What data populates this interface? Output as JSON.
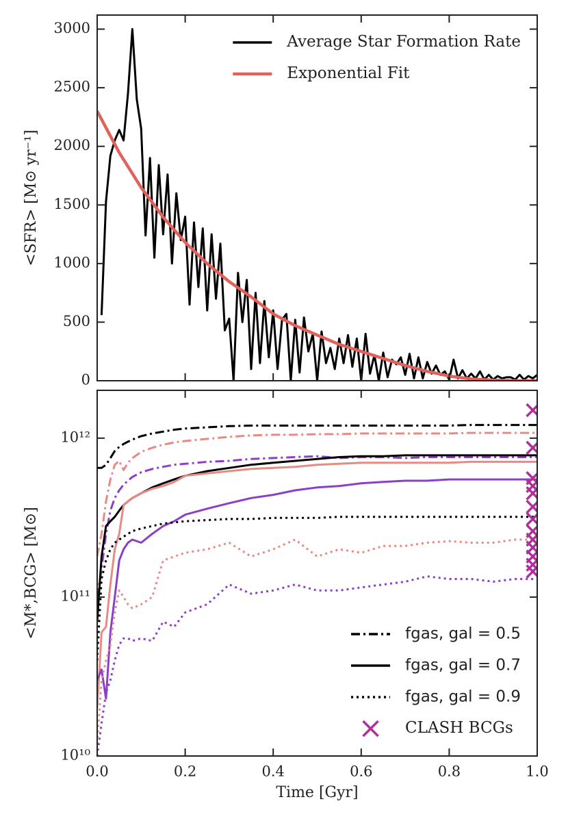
{
  "chart_data": [
    {
      "type": "line",
      "ylabel": "<SFR> [M⊙ yr⁻¹]",
      "xlim": [
        0,
        1
      ],
      "xticks": [
        0,
        0.2,
        0.4,
        0.6,
        0.8,
        1
      ],
      "ylim": [
        0,
        3120
      ],
      "yticks": [
        0,
        500,
        1000,
        1500,
        2000,
        2500,
        3000
      ],
      "legend": "upper right",
      "series": [
        {
          "name": "Average Star Formation Rate",
          "color": "#000000",
          "linestyle": "solid",
          "x": [
            0.01,
            0.02,
            0.03,
            0.04,
            0.05,
            0.06,
            0.07,
            0.08,
            0.09,
            0.1,
            0.11,
            0.12,
            0.13,
            0.14,
            0.15,
            0.16,
            0.17,
            0.18,
            0.19,
            0.2,
            0.21,
            0.22,
            0.23,
            0.24,
            0.25,
            0.26,
            0.27,
            0.28,
            0.29,
            0.3,
            0.31,
            0.32,
            0.33,
            0.34,
            0.35,
            0.36,
            0.37,
            0.38,
            0.39,
            0.4,
            0.41,
            0.42,
            0.43,
            0.44,
            0.45,
            0.46,
            0.47,
            0.48,
            0.49,
            0.5,
            0.51,
            0.52,
            0.53,
            0.54,
            0.55,
            0.56,
            0.57,
            0.58,
            0.59,
            0.6,
            0.61,
            0.62,
            0.63,
            0.64,
            0.65,
            0.66,
            0.67,
            0.68,
            0.69,
            0.7,
            0.71,
            0.72,
            0.73,
            0.74,
            0.75,
            0.76,
            0.77,
            0.78,
            0.79,
            0.8,
            0.81,
            0.82,
            0.83,
            0.84,
            0.85,
            0.86,
            0.87,
            0.88,
            0.89,
            0.9,
            0.91,
            0.92,
            0.93,
            0.94,
            0.95,
            0.96,
            0.97,
            0.98,
            0.99,
            1.0
          ],
          "values": [
            560,
            1530,
            1920,
            2050,
            2140,
            2050,
            2450,
            3000,
            2400,
            2150,
            1240,
            1900,
            1050,
            1840,
            1250,
            1760,
            1000,
            1600,
            1200,
            1400,
            650,
            1350,
            800,
            1300,
            600,
            1250,
            700,
            1170,
            430,
            530,
            0,
            920,
            500,
            860,
            100,
            750,
            150,
            680,
            200,
            600,
            100,
            520,
            570,
            0,
            520,
            70,
            540,
            250,
            400,
            0,
            420,
            150,
            280,
            100,
            360,
            150,
            390,
            120,
            360,
            0,
            400,
            60,
            220,
            0,
            240,
            30,
            180,
            140,
            200,
            50,
            230,
            20,
            200,
            20,
            160,
            60,
            130,
            50,
            80,
            10,
            180,
            20,
            90,
            20,
            60,
            20,
            80,
            10,
            50,
            10,
            40,
            20,
            30,
            30,
            10,
            50,
            10,
            40,
            20,
            50
          ]
        },
        {
          "name": "Exponential Fit",
          "color": "#e0625c",
          "linestyle": "solid",
          "width": 4.5,
          "x": [
            0,
            0.05,
            0.1,
            0.15,
            0.2,
            0.25,
            0.3,
            0.35,
            0.4,
            0.45,
            0.5,
            0.55,
            0.6,
            0.65,
            0.7,
            0.75,
            0.8,
            0.85,
            0.9,
            0.95,
            1.0
          ],
          "values": [
            2300,
            1947,
            1648,
            1395,
            1181,
            999,
            846,
            716,
            570,
            470,
            390,
            310,
            250,
            190,
            130,
            80,
            40,
            15,
            5,
            0,
            0
          ]
        }
      ]
    },
    {
      "type": "line",
      "xlabel": "Time [Gyr]",
      "ylabel": "<M*,BCG> [M⊙]",
      "xlim": [
        0,
        1
      ],
      "xticks": [
        {
          "value": 0,
          "label": "0.0"
        },
        0.2,
        0.4,
        0.6,
        0.8,
        {
          "value": 1,
          "label": "1.0"
        }
      ],
      "ylim": [
        10000000000.0,
        2000000000000.0
      ],
      "log_y": true,
      "yticks": [
        {
          "value": 10000000000.0,
          "label": "10¹⁰"
        },
        {
          "value": 100000000000.0,
          "label": "10¹¹"
        },
        {
          "value": 1000000000000.0,
          "label": "10¹²"
        }
      ],
      "legend": "lower right",
      "x": [
        0,
        0.01,
        0.02,
        0.03,
        0.04,
        0.05,
        0.06,
        0.07,
        0.08,
        0.1,
        0.125,
        0.15,
        0.175,
        0.2,
        0.25,
        0.3,
        0.35,
        0.4,
        0.45,
        0.5,
        0.55,
        0.6,
        0.65,
        0.7,
        0.75,
        0.8,
        0.85,
        0.9,
        0.95,
        1.0
      ],
      "series": [
        {
          "name": "fgas, gal = 0.5",
          "color": "#000000",
          "linestyle": "dashdot",
          "values": [
            650000000000.0,
            650000000000.0,
            680000000000.0,
            750000000000.0,
            830000000000.0,
            880000000000.0,
            920000000000.0,
            950000000000.0,
            980000000000.0,
            1030000000000.0,
            1070000000000.0,
            1100000000000.0,
            1130000000000.0,
            1150000000000.0,
            1170000000000.0,
            1190000000000.0,
            1200000000000.0,
            1200000000000.0,
            1200000000000.0,
            1200000000000.0,
            1200000000000.0,
            1200000000000.0,
            1200000000000.0,
            1200000000000.0,
            1200000000000.0,
            1200000000000.0,
            1210000000000.0,
            1210000000000.0,
            1210000000000.0,
            1210000000000.0
          ]
        },
        {
          "color": "#e88a84",
          "linestyle": "dashdot",
          "values": [
            180000000000.0,
            250000000000.0,
            400000000000.0,
            550000000000.0,
            680000000000.0,
            720000000000.0,
            630000000000.0,
            700000000000.0,
            750000000000.0,
            820000000000.0,
            870000000000.0,
            910000000000.0,
            940000000000.0,
            960000000000.0,
            990000000000.0,
            1020000000000.0,
            1040000000000.0,
            1050000000000.0,
            1050000000000.0,
            1060000000000.0,
            1060000000000.0,
            1070000000000.0,
            1070000000000.0,
            1070000000000.0,
            1070000000000.0,
            1070000000000.0,
            1080000000000.0,
            1080000000000.0,
            1080000000000.0,
            1080000000000.0
          ]
        },
        {
          "color": "#8b3fc9",
          "linestyle": "dashdot",
          "values": [
            100000000000.0,
            150000000000.0,
            250000000000.0,
            350000000000.0,
            420000000000.0,
            470000000000.0,
            510000000000.0,
            540000000000.0,
            570000000000.0,
            610000000000.0,
            640000000000.0,
            660000000000.0,
            680000000000.0,
            690000000000.0,
            710000000000.0,
            720000000000.0,
            740000000000.0,
            750000000000.0,
            760000000000.0,
            770000000000.0,
            750000000000.0,
            760000000000.0,
            760000000000.0,
            750000000000.0,
            760000000000.0,
            760000000000.0,
            760000000000.0,
            760000000000.0,
            760000000000.0,
            760000000000.0
          ]
        },
        {
          "name": "fgas, gal = 0.7",
          "color": "#000000",
          "linestyle": "solid",
          "values": [
            70000000000.0,
            180000000000.0,
            280000000000.0,
            300000000000.0,
            320000000000.0,
            350000000000.0,
            380000000000.0,
            400000000000.0,
            420000000000.0,
            450000000000.0,
            490000000000.0,
            520000000000.0,
            550000000000.0,
            580000000000.0,
            620000000000.0,
            650000000000.0,
            680000000000.0,
            700000000000.0,
            720000000000.0,
            740000000000.0,
            760000000000.0,
            770000000000.0,
            770000000000.0,
            780000000000.0,
            780000000000.0,
            780000000000.0,
            780000000000.0,
            780000000000.0,
            780000000000.0,
            780000000000.0
          ]
        },
        {
          "color": "#e88a84",
          "linestyle": "solid",
          "values": [
            20000000000.0,
            60000000000.0,
            65000000000.0,
            120000000000.0,
            200000000000.0,
            250000000000.0,
            380000000000.0,
            400000000000.0,
            420000000000.0,
            450000000000.0,
            480000000000.0,
            500000000000.0,
            530000000000.0,
            580000000000.0,
            600000000000.0,
            620000000000.0,
            640000000000.0,
            650000000000.0,
            660000000000.0,
            680000000000.0,
            690000000000.0,
            700000000000.0,
            700000000000.0,
            700000000000.0,
            700000000000.0,
            700000000000.0,
            710000000000.0,
            710000000000.0,
            710000000000.0,
            710000000000.0
          ]
        },
        {
          "color": "#8b3fc9",
          "linestyle": "solid",
          "values": [
            30000000000.0,
            35000000000.0,
            23000000000.0,
            60000000000.0,
            100000000000.0,
            170000000000.0,
            200000000000.0,
            220000000000.0,
            230000000000.0,
            220000000000.0,
            250000000000.0,
            280000000000.0,
            300000000000.0,
            330000000000.0,
            360000000000.0,
            390000000000.0,
            420000000000.0,
            440000000000.0,
            470000000000.0,
            490000000000.0,
            500000000000.0,
            520000000000.0,
            530000000000.0,
            540000000000.0,
            540000000000.0,
            550000000000.0,
            550000000000.0,
            550000000000.0,
            550000000000.0,
            550000000000.0
          ]
        },
        {
          "name": "fgas, gal = 0.9",
          "color": "#000000",
          "linestyle": "dotted",
          "values": [
            40000000000.0,
            130000000000.0,
            170000000000.0,
            200000000000.0,
            220000000000.0,
            230000000000.0,
            240000000000.0,
            250000000000.0,
            260000000000.0,
            270000000000.0,
            280000000000.0,
            290000000000.0,
            295000000000.0,
            300000000000.0,
            305000000000.0,
            310000000000.0,
            310000000000.0,
            315000000000.0,
            315000000000.0,
            315000000000.0,
            320000000000.0,
            320000000000.0,
            320000000000.0,
            320000000000.0,
            320000000000.0,
            320000000000.0,
            320000000000.0,
            320000000000.0,
            320000000000.0,
            320000000000.0
          ]
        },
        {
          "color": "#e88a84",
          "linestyle": "dotted",
          "values": [
            12000000000.0,
            30000000000.0,
            40000000000.0,
            50000000000.0,
            80000000000.0,
            110000000000.0,
            100000000000.0,
            90000000000.0,
            85000000000.0,
            90000000000.0,
            100000000000.0,
            170000000000.0,
            180000000000.0,
            190000000000.0,
            200000000000.0,
            220000000000.0,
            180000000000.0,
            200000000000.0,
            230000000000.0,
            180000000000.0,
            200000000000.0,
            190000000000.0,
            210000000000.0,
            210000000000.0,
            220000000000.0,
            225000000000.0,
            220000000000.0,
            220000000000.0,
            230000000000.0,
            230000000000.0
          ]
        },
        {
          "color": "#8b3fc9",
          "linestyle": "dotted",
          "values": [
            10000000000.0,
            16000000000.0,
            25000000000.0,
            30000000000.0,
            40000000000.0,
            50000000000.0,
            55000000000.0,
            55000000000.0,
            53000000000.0,
            55000000000.0,
            53000000000.0,
            70000000000.0,
            65000000000.0,
            80000000000.0,
            90000000000.0,
            120000000000.0,
            105000000000.0,
            110000000000.0,
            120000000000.0,
            110000000000.0,
            110000000000.0,
            115000000000.0,
            120000000000.0,
            125000000000.0,
            135000000000.0,
            130000000000.0,
            130000000000.0,
            125000000000.0,
            130000000000.0,
            130000000000.0
          ]
        },
        {
          "name": "CLASH BCGs",
          "type": "scatter",
          "marker": "x",
          "color": "#b0309a",
          "x": [
            0.99,
            0.99,
            0.99,
            0.99,
            0.99,
            0.99,
            0.99,
            0.99,
            0.99,
            0.99,
            0.99,
            0.99,
            0.99
          ],
          "values": [
            1500000000000.0,
            870000000000.0,
            560000000000.0,
            500000000000.0,
            450000000000.0,
            370000000000.0,
            310000000000.0,
            260000000000.0,
            230000000000.0,
            205000000000.0,
            180000000000.0,
            160000000000.0,
            145000000000.0
          ]
        }
      ]
    }
  ]
}
